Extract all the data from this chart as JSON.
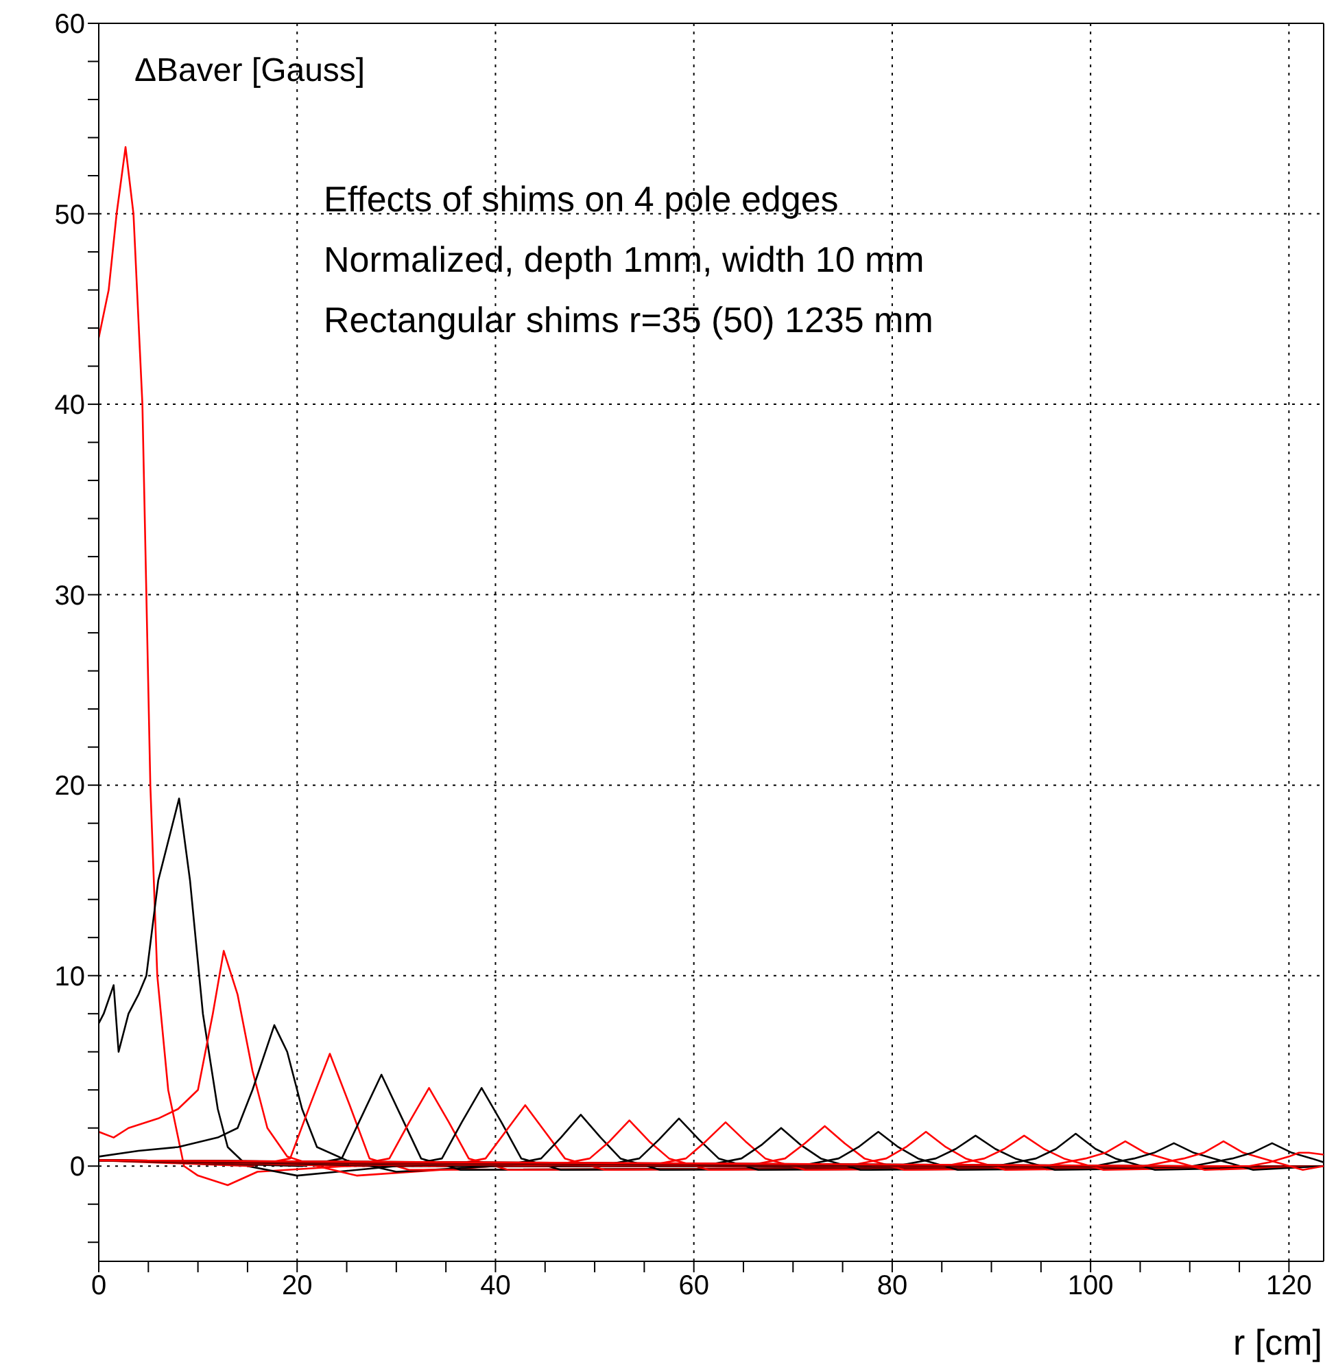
{
  "chart_data": {
    "type": "line",
    "ylabel": "ΔBaver [Gauss]",
    "xlabel": "r [cm]",
    "annotations": [
      "Effects of shims on 4 pole edges",
      "Normalized, depth 1mm, width 10 mm",
      "Rectangular shims r=35 (50) 1235 mm"
    ],
    "xlim": [
      0,
      123.5
    ],
    "ylim": [
      -5,
      60
    ],
    "xticks": [
      0,
      {
        "value": 5,
        "label": null
      },
      {
        "value": 10,
        "label": null
      },
      {
        "value": 15,
        "label": null
      },
      20,
      {
        "value": 25,
        "label": null
      },
      {
        "value": 30,
        "label": null
      },
      {
        "value": 35,
        "label": null
      },
      40,
      {
        "value": 45,
        "label": null
      },
      {
        "value": 50,
        "label": null
      },
      {
        "value": 55,
        "label": null
      },
      60,
      {
        "value": 65,
        "label": null
      },
      {
        "value": 70,
        "label": null
      },
      {
        "value": 75,
        "label": null
      },
      80,
      {
        "value": 85,
        "label": null
      },
      {
        "value": 90,
        "label": null
      },
      {
        "value": 95,
        "label": null
      },
      100,
      {
        "value": 105,
        "label": null
      },
      {
        "value": 110,
        "label": null
      },
      {
        "value": 115,
        "label": null
      },
      120
    ],
    "yticks": [
      {
        "value": -4,
        "label": null
      },
      {
        "value": -2,
        "label": null
      },
      0,
      {
        "value": 2,
        "label": null
      },
      {
        "value": 4,
        "label": null
      },
      {
        "value": 6,
        "label": null
      },
      {
        "value": 8,
        "label": null
      },
      10,
      {
        "value": 12,
        "label": null
      },
      {
        "value": 14,
        "label": null
      },
      {
        "value": 16,
        "label": null
      },
      {
        "value": 18,
        "label": null
      },
      20,
      {
        "value": 22,
        "label": null
      },
      {
        "value": 24,
        "label": null
      },
      {
        "value": 26,
        "label": null
      },
      {
        "value": 28,
        "label": null
      },
      30,
      {
        "value": 32,
        "label": null
      },
      {
        "value": 34,
        "label": null
      },
      {
        "value": 36,
        "label": null
      },
      {
        "value": 38,
        "label": null
      },
      40,
      {
        "value": 42,
        "label": null
      },
      {
        "value": 44,
        "label": null
      },
      {
        "value": 46,
        "label": null
      },
      {
        "value": 48,
        "label": null
      },
      50,
      {
        "value": 52,
        "label": null
      },
      {
        "value": 54,
        "label": null
      },
      {
        "value": 56,
        "label": null
      },
      {
        "value": 58,
        "label": null
      },
      60
    ],
    "grid": true,
    "marker": "none",
    "line_style": "solid",
    "series": [
      {
        "color": "#ff0000",
        "x": [
          0,
          1,
          1.8,
          2.7,
          3.5,
          4.4,
          5.2,
          5.9,
          7,
          8.6,
          10,
          13,
          16,
          25,
          60,
          123.5
        ],
        "values": [
          43.5,
          46,
          50,
          53.5,
          50,
          40,
          20,
          10,
          4,
          0,
          -0.5,
          -1,
          -0.3,
          0,
          0,
          0
        ]
      },
      {
        "color": "#000000",
        "x": [
          0,
          0.5,
          1.5,
          2,
          3,
          4,
          4.8,
          6,
          8.1,
          9.2,
          10.5,
          12,
          13,
          15,
          20,
          30,
          123.5
        ],
        "values": [
          7.5,
          8,
          9.5,
          6,
          8,
          9,
          10,
          15,
          19.3,
          15,
          8,
          3,
          1,
          0,
          -0.5,
          0,
          0
        ]
      },
      {
        "color": "#ff0000",
        "x": [
          0,
          1.5,
          3,
          6,
          8,
          10,
          11.5,
          12.6,
          14,
          15.5,
          17,
          19,
          22,
          26,
          40,
          123.5
        ],
        "values": [
          1.8,
          1.5,
          2,
          2.5,
          3,
          4,
          8,
          11.3,
          9,
          5,
          2,
          0.5,
          0,
          -0.5,
          0,
          0
        ]
      },
      {
        "color": "#000000",
        "x": [
          0,
          4,
          8,
          12,
          14,
          15.5,
          17.7,
          19,
          20.5,
          22,
          25,
          30,
          40,
          123.5
        ],
        "values": [
          0.5,
          0.8,
          1,
          1.5,
          2,
          4,
          7.4,
          6,
          3,
          1,
          0.3,
          -0.3,
          0,
          0
        ]
      },
      {
        "color": "#ff0000",
        "x": [
          0,
          15.3,
          19.3,
          21.3,
          23.3,
          25.3,
          27.3,
          31.3,
          123.5
        ],
        "values": [
          0.3,
          0,
          0.4,
          3.2,
          5.9,
          3.2,
          0.4,
          -0.2,
          0
        ]
      },
      {
        "color": "#000000",
        "x": [
          0,
          20.5,
          24.5,
          26.5,
          28.5,
          30.5,
          32.5,
          36.5,
          123.5
        ],
        "values": [
          0.3,
          0,
          0.4,
          2.6,
          4.8,
          2.6,
          0.4,
          -0.2,
          0
        ]
      },
      {
        "color": "#ff0000",
        "x": [
          0,
          25.3,
          29.3,
          31.3,
          33.3,
          35.3,
          37.3,
          41.3,
          123.5
        ],
        "values": [
          0.3,
          0,
          0.4,
          2.3,
          4.1,
          2.3,
          0.4,
          -0.2,
          0
        ]
      },
      {
        "color": "#000000",
        "x": [
          0,
          30.6,
          34.6,
          36.6,
          38.6,
          40.6,
          42.6,
          46.6,
          123.5
        ],
        "values": [
          0.3,
          0,
          0.4,
          2.3,
          4.1,
          2.3,
          0.4,
          -0.2,
          0
        ]
      },
      {
        "color": "#ff0000",
        "x": [
          0,
          35,
          39,
          41,
          43,
          45,
          47,
          51,
          123.5
        ],
        "values": [
          0.3,
          0,
          0.4,
          1.8,
          3.2,
          1.8,
          0.4,
          -0.2,
          0
        ]
      },
      {
        "color": "#000000",
        "x": [
          0,
          40.6,
          44.6,
          46.6,
          48.6,
          50.6,
          52.6,
          56.6,
          123.5
        ],
        "values": [
          0.3,
          0,
          0.4,
          1.5,
          2.7,
          1.5,
          0.4,
          -0.2,
          0
        ]
      },
      {
        "color": "#ff0000",
        "x": [
          0,
          45.5,
          49.5,
          51.5,
          53.5,
          55.5,
          57.5,
          61.5,
          123.5
        ],
        "values": [
          0.3,
          0,
          0.4,
          1.3,
          2.4,
          1.3,
          0.4,
          -0.2,
          0
        ]
      },
      {
        "color": "#000000",
        "x": [
          0,
          50.5,
          54.5,
          56.5,
          58.5,
          60.5,
          62.5,
          66.5,
          123.5
        ],
        "values": [
          0.3,
          0,
          0.4,
          1.4,
          2.5,
          1.4,
          0.4,
          -0.2,
          0
        ]
      },
      {
        "color": "#ff0000",
        "x": [
          0,
          55.2,
          59.2,
          61.2,
          63.2,
          65.2,
          67.2,
          71.2,
          123.5
        ],
        "values": [
          0.3,
          0,
          0.4,
          1.3,
          2.3,
          1.3,
          0.4,
          -0.2,
          0
        ]
      },
      {
        "color": "#000000",
        "x": [
          0,
          60.8,
          64.8,
          66.8,
          68.8,
          70.8,
          72.8,
          76.8,
          123.5
        ],
        "values": [
          0.3,
          0,
          0.4,
          1.1,
          2,
          1.1,
          0.4,
          -0.2,
          0
        ]
      },
      {
        "color": "#ff0000",
        "x": [
          0,
          65.2,
          69.2,
          71.2,
          73.2,
          75.2,
          77.2,
          81.2,
          123.5
        ],
        "values": [
          0.3,
          0,
          0.4,
          1.2,
          2.1,
          1.2,
          0.4,
          -0.2,
          0
        ]
      },
      {
        "color": "#000000",
        "x": [
          0,
          70.6,
          74.6,
          76.6,
          78.6,
          80.6,
          82.6,
          86.6,
          123.5
        ],
        "values": [
          0.3,
          0,
          0.4,
          1,
          1.8,
          1,
          0.4,
          -0.2,
          0
        ]
      },
      {
        "color": "#ff0000",
        "x": [
          0,
          75.4,
          79.4,
          81.4,
          83.4,
          85.4,
          87.4,
          91.4,
          123.5
        ],
        "values": [
          0.3,
          0,
          0.4,
          1,
          1.8,
          1,
          0.4,
          -0.2,
          0
        ]
      },
      {
        "color": "#000000",
        "x": [
          0,
          80.4,
          84.4,
          86.4,
          88.4,
          90.4,
          92.4,
          96.4,
          123.5
        ],
        "values": [
          0.3,
          0,
          0.4,
          0.9,
          1.6,
          0.9,
          0.4,
          -0.2,
          0
        ]
      },
      {
        "color": "#ff0000",
        "x": [
          0,
          85.3,
          89.3,
          91.3,
          93.3,
          95.3,
          97.3,
          101.3,
          123.5
        ],
        "values": [
          0.3,
          0,
          0.4,
          0.9,
          1.6,
          0.9,
          0.4,
          -0.2,
          0
        ]
      },
      {
        "color": "#000000",
        "x": [
          0,
          90.5,
          94.5,
          96.5,
          98.5,
          100.5,
          102.5,
          106.5,
          123.5
        ],
        "values": [
          0.3,
          0,
          0.4,
          0.9,
          1.7,
          0.9,
          0.4,
          -0.2,
          0
        ]
      },
      {
        "color": "#ff0000",
        "x": [
          0,
          95.5,
          99.5,
          101.5,
          103.5,
          105.5,
          107.5,
          111.5,
          123.5
        ],
        "values": [
          0.3,
          0,
          0.4,
          0.7,
          1.3,
          0.7,
          0.4,
          -0.2,
          0
        ]
      },
      {
        "color": "#000000",
        "x": [
          0,
          100.4,
          104.4,
          106.4,
          108.4,
          110.4,
          112.4,
          116.4,
          123.5
        ],
        "values": [
          0.3,
          0,
          0.4,
          0.7,
          1.2,
          0.7,
          0.4,
          -0.2,
          0
        ]
      },
      {
        "color": "#ff0000",
        "x": [
          0,
          105.4,
          109.4,
          111.4,
          113.4,
          115.4,
          117.4,
          121.4,
          123.5
        ],
        "values": [
          0.3,
          0,
          0.4,
          0.7,
          1.3,
          0.7,
          0.4,
          -0.2,
          0
        ]
      },
      {
        "color": "#000000",
        "x": [
          0,
          110.3,
          114.3,
          116.3,
          118.3,
          120.3,
          122.3,
          123.5
        ],
        "values": [
          0.3,
          0,
          0.4,
          0.7,
          1.2,
          0.7,
          0.4,
          0.2
        ]
      },
      {
        "color": "#ff0000",
        "x": [
          0,
          112,
          116,
          118,
          120,
          121,
          122,
          123.5
        ],
        "values": [
          0.3,
          0,
          0,
          0.2,
          0.5,
          0.7,
          0.7,
          0.6
        ]
      }
    ]
  }
}
